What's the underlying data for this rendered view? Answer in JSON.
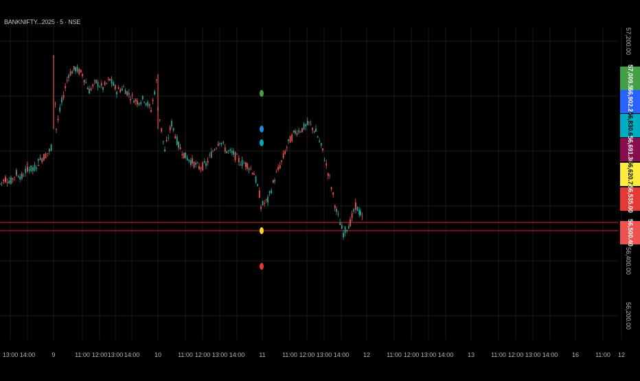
{
  "chart": {
    "symbol_title": "BANKNIFTY...2025 · 5 · NSE"
  },
  "colors": {
    "background": "#000000",
    "grid": "#1a1a1a",
    "up": "#26a69a",
    "down": "#ef5350",
    "price_line": "#b71c1c"
  },
  "chart_data": {
    "type": "candlestick",
    "title": "",
    "xlabel": "",
    "ylabel": "",
    "ylim": [
      56150,
      57250
    ],
    "y_ticks": [
      "57,200.00",
      "56,400.00",
      "56,200.00"
    ],
    "x_ticks": [
      "13:00",
      "14:00",
      "9",
      "11:00",
      "12:00",
      "13:00",
      "14:00",
      "10",
      "11:00",
      "12:00",
      "13:00",
      "14:00",
      "11",
      "11:00",
      "12:00",
      "13:00",
      "14:00",
      "12",
      "11:00",
      "12:00",
      "13:00",
      "14:00",
      "13",
      "11:00",
      "12:00",
      "13:00",
      "14:00",
      "16",
      "11:00",
      "12"
    ],
    "series": [
      {
        "day": 1,
        "points": [
          [
            0,
            56680
          ],
          [
            8,
            56700
          ],
          [
            16,
            56690
          ],
          [
            24,
            56720
          ],
          [
            32,
            56705
          ],
          [
            40,
            56740
          ],
          [
            48,
            56730
          ],
          [
            56,
            56760
          ],
          [
            64,
            56780
          ],
          [
            72,
            56800
          ],
          [
            76,
            56820
          ]
        ]
      },
      {
        "day": 2,
        "points": [
          [
            78,
            57150
          ],
          [
            82,
            56880
          ],
          [
            90,
            56980
          ],
          [
            100,
            57080
          ],
          [
            110,
            57100
          ],
          [
            120,
            57080
          ],
          [
            130,
            57020
          ],
          [
            140,
            57050
          ],
          [
            150,
            57030
          ],
          [
            160,
            57060
          ],
          [
            170,
            57020
          ],
          [
            180,
            57030
          ],
          [
            190,
            57000
          ],
          [
            200,
            56980
          ],
          [
            210,
            56990
          ],
          [
            220,
            56950
          ],
          [
            230,
            57080
          ]
        ]
      },
      {
        "day": 3,
        "points": [
          [
            230,
            56960
          ],
          [
            240,
            56800
          ],
          [
            250,
            56900
          ],
          [
            260,
            56820
          ],
          [
            270,
            56780
          ],
          [
            280,
            56760
          ],
          [
            290,
            56740
          ],
          [
            300,
            56750
          ],
          [
            310,
            56800
          ],
          [
            320,
            56840
          ],
          [
            330,
            56800
          ],
          [
            340,
            56790
          ],
          [
            350,
            56760
          ],
          [
            360,
            56750
          ],
          [
            370,
            56720
          ],
          [
            380,
            56620
          ]
        ]
      },
      {
        "day": 4,
        "points": [
          [
            380,
            56600
          ],
          [
            390,
            56620
          ],
          [
            400,
            56700
          ],
          [
            410,
            56760
          ],
          [
            420,
            56830
          ],
          [
            430,
            56870
          ],
          [
            440,
            56880
          ],
          [
            450,
            56900
          ],
          [
            460,
            56870
          ],
          [
            470,
            56800
          ],
          [
            480,
            56700
          ],
          [
            490,
            56580
          ],
          [
            500,
            56500
          ],
          [
            510,
            56540
          ],
          [
            518,
            56600
          ],
          [
            525,
            56570
          ],
          [
            530,
            56540
          ]
        ]
      }
    ],
    "markers": [
      {
        "color": "#43a047",
        "price": 57010
      },
      {
        "color": "#1e88e5",
        "price": 56880
      },
      {
        "color": "#00acc1",
        "price": 56830
      },
      {
        "color": "#fdd835",
        "price": 56510
      },
      {
        "color": "#e53935",
        "price": 56380
      }
    ],
    "horizontal_lines": [
      56540,
      56510
    ],
    "price_labels": [
      {
        "text": "57,009.57",
        "color": "#43a047",
        "text_color": "#ffffff"
      },
      {
        "text": "56,902.29",
        "color": "#2962ff",
        "text_color": "#ffffff"
      },
      {
        "text": "56,830.64",
        "color": "#00acc1",
        "text_color": "#000000"
      },
      {
        "text": "56,691.36",
        "color": "#880e4f",
        "text_color": "#ffffff"
      },
      {
        "text": "56,620.71",
        "color": "#ffeb3b",
        "text_color": "#000000"
      },
      {
        "text": "56,535.00",
        "color": "#e53935",
        "text_color": "#ffffff"
      },
      {
        "text": "56,500.40",
        "color": "#ef5350",
        "text_color": "#ffffff"
      }
    ]
  }
}
